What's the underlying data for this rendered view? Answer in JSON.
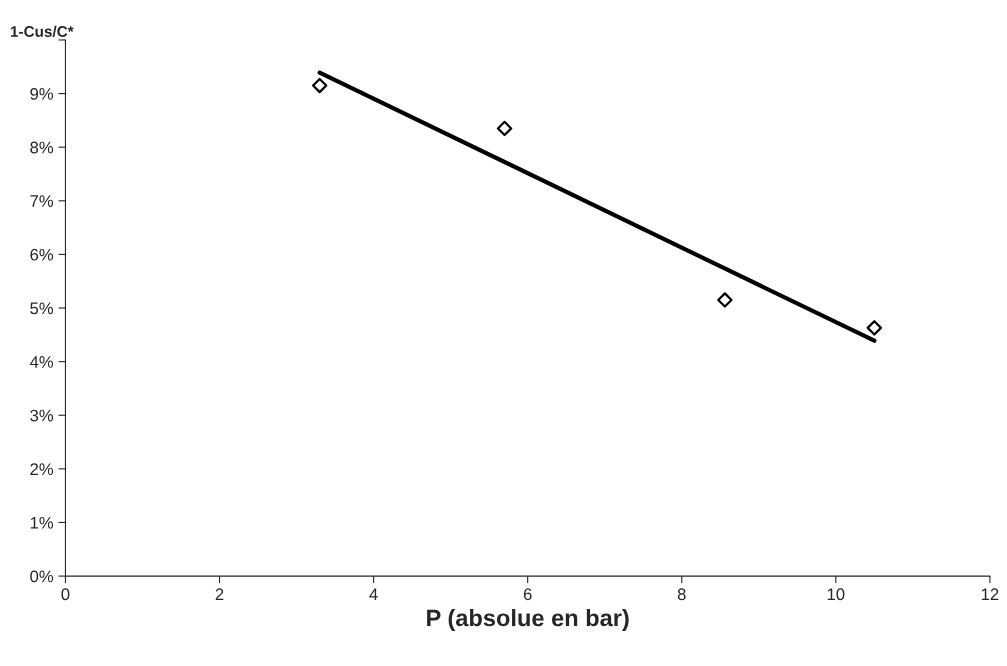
{
  "chart_data": {
    "type": "scatter",
    "ylabel": "1-Cus/C*",
    "xlabel": "P (absolue en bar)",
    "series": [
      {
        "color": "#000000",
        "marker": "diamond",
        "x": [
          3.3,
          5.7,
          8.56,
          10.5
        ],
        "values": [
          9.15,
          8.35,
          5.15,
          4.63
        ]
      },
      {
        "type": "line",
        "color": "#000000",
        "marker": "none",
        "line_style": "solid",
        "x": [
          3.3,
          10.5
        ],
        "values": [
          9.39,
          4.39
        ]
      }
    ],
    "xlim": [
      0,
      12
    ],
    "xticks": [
      0,
      2,
      4,
      6,
      8,
      10,
      12
    ],
    "ylim": [
      0,
      10
    ],
    "yticks": [
      {
        "value": 0,
        "label": "0%"
      },
      {
        "value": 1,
        "label": "1%"
      },
      {
        "value": 2,
        "label": "2%"
      },
      {
        "value": 3,
        "label": "3%"
      },
      {
        "value": 4,
        "label": "4%"
      },
      {
        "value": 5,
        "label": "5%"
      },
      {
        "value": 6,
        "label": "6%"
      },
      {
        "value": 7,
        "label": "7%"
      },
      {
        "value": 8,
        "label": "8%"
      },
      {
        "value": 9,
        "label": "9%"
      },
      {
        "value": 10,
        "label": null
      }
    ],
    "grid": false,
    "legend": false
  }
}
